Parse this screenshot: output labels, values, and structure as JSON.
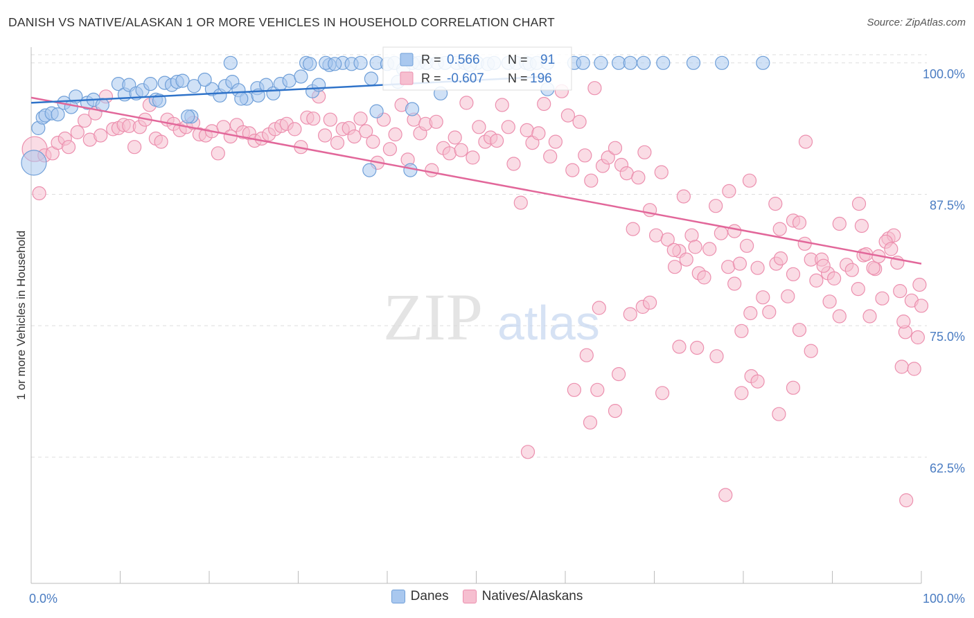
{
  "title": "DANISH VS NATIVE/ALASKAN 1 OR MORE VEHICLES IN HOUSEHOLD CORRELATION CHART",
  "source": "Source: ZipAtlas.com",
  "watermark": {
    "zip": "ZIP",
    "atlas": "atlas"
  },
  "colors": {
    "danes_fill": "#a9c8ef",
    "danes_stroke": "#6f9fd8",
    "danes_line": "#2f73c9",
    "natives_fill": "#f6bfd0",
    "natives_stroke": "#ec8fae",
    "natives_line": "#e2679a",
    "grid": "#dddddd",
    "axis_label": "#4a7cc2"
  },
  "stats_legend": {
    "danes": {
      "r_label": "R =",
      "r_value": "0.566",
      "n_label": "N =",
      "n_value": "91"
    },
    "natives": {
      "r_label": "R =",
      "r_value": "-0.607",
      "n_label": "N =",
      "n_value": "196"
    }
  },
  "chart_data": {
    "type": "scatter",
    "title": "DANISH VS NATIVE/ALASKAN 1 OR MORE VEHICLES IN HOUSEHOLD CORRELATION CHART",
    "xlabel": "",
    "ylabel": "1 or more Vehicles in Household",
    "xlim": [
      0,
      100
    ],
    "ylim": [
      50.5,
      101.5
    ],
    "x_tick_labels": [
      "0.0%",
      "100.0%"
    ],
    "y_ticks": [
      100.0,
      87.5,
      75.0,
      62.5
    ],
    "y_tick_labels": [
      "100.0%",
      "87.5%",
      "75.0%",
      "62.5%"
    ],
    "grid": true,
    "legend_placement": "top-center",
    "series": [
      {
        "name": "Danes",
        "r": 0.566,
        "n": 91,
        "trend": [
          [
            0,
            96.2
          ],
          [
            58,
            98.7
          ]
        ],
        "points": [
          [
            0.3,
            90.5
          ],
          [
            0.8,
            93.8
          ],
          [
            1.3,
            94.8
          ],
          [
            1.6,
            95.0
          ],
          [
            2.3,
            95.2
          ],
          [
            3.0,
            95.1
          ],
          [
            3.7,
            96.2
          ],
          [
            4.5,
            95.8
          ],
          [
            5.0,
            96.8
          ],
          [
            6.3,
            96.2
          ],
          [
            7.0,
            96.5
          ],
          [
            9.8,
            98.0
          ],
          [
            8.0,
            96.0
          ],
          [
            10.5,
            97.0
          ],
          [
            11.0,
            97.9
          ],
          [
            11.8,
            97.1
          ],
          [
            12.5,
            97.4
          ],
          [
            13.4,
            98.0
          ],
          [
            14.0,
            96.5
          ],
          [
            15.0,
            98.1
          ],
          [
            15.8,
            97.9
          ],
          [
            16.4,
            98.2
          ],
          [
            17.0,
            98.3
          ],
          [
            18.0,
            94.9
          ],
          [
            18.3,
            97.8
          ],
          [
            20.3,
            97.5
          ],
          [
            21.2,
            96.9
          ],
          [
            21.8,
            97.8
          ],
          [
            22.6,
            98.2
          ],
          [
            23.3,
            97.4
          ],
          [
            24.2,
            96.6
          ],
          [
            25.4,
            97.6
          ],
          [
            26.4,
            97.9
          ],
          [
            27.2,
            97.1
          ],
          [
            28.0,
            98.0
          ],
          [
            29.0,
            98.3
          ],
          [
            30.3,
            98.7
          ],
          [
            31.6,
            97.3
          ],
          [
            32.3,
            97.9
          ],
          [
            33.5,
            99.8
          ],
          [
            35.0,
            100.0
          ],
          [
            36.0,
            99.9
          ],
          [
            37.0,
            100.0
          ],
          [
            38.2,
            98.5
          ],
          [
            38.8,
            100.0
          ],
          [
            40.0,
            99.9
          ],
          [
            40.8,
            100.0
          ],
          [
            41.8,
            99.4
          ],
          [
            42.8,
            100.0
          ],
          [
            43.5,
            100.0
          ],
          [
            44.4,
            100.0
          ],
          [
            45.6,
            100.0
          ],
          [
            46.5,
            100.0
          ],
          [
            47.8,
            100.0
          ],
          [
            48.7,
            100.0
          ],
          [
            50.1,
            100.0
          ],
          [
            51.3,
            99.9
          ],
          [
            52.0,
            100.0
          ],
          [
            53.6,
            100.0
          ],
          [
            54.5,
            100.0
          ],
          [
            55.6,
            100.0
          ],
          [
            56.0,
            99.9
          ],
          [
            56.8,
            100.0
          ],
          [
            58.0,
            100.0
          ],
          [
            61.0,
            100.0
          ],
          [
            62.0,
            100.0
          ],
          [
            64.0,
            100.0
          ],
          [
            66.0,
            100.0
          ],
          [
            67.3,
            100.0
          ],
          [
            68.8,
            100.0
          ],
          [
            71.0,
            100.0
          ],
          [
            74.4,
            100.0
          ],
          [
            77.6,
            100.0
          ],
          [
            82.2,
            100.0
          ],
          [
            30.9,
            100.0
          ],
          [
            31.3,
            99.9
          ],
          [
            33.1,
            100.0
          ],
          [
            34.1,
            99.9
          ],
          [
            14.4,
            96.4
          ],
          [
            22.4,
            100.0
          ],
          [
            17.6,
            94.9
          ],
          [
            19.5,
            98.4
          ],
          [
            23.6,
            96.6
          ],
          [
            41.2,
            98.2
          ],
          [
            25.5,
            96.9
          ],
          [
            38.8,
            95.4
          ],
          [
            42.8,
            95.6
          ],
          [
            46.0,
            97.1
          ],
          [
            49.3,
            99.8
          ],
          [
            38.0,
            89.8
          ],
          [
            42.6,
            89.8
          ],
          [
            58.0,
            97.5
          ]
        ]
      },
      {
        "name": "Natives/Alaskans",
        "r": -0.607,
        "n": 196,
        "trend": [
          [
            0,
            96.7
          ],
          [
            100,
            80.9
          ]
        ],
        "points": [
          [
            0.4,
            91.8
          ],
          [
            0.9,
            87.6
          ],
          [
            1.5,
            91.2
          ],
          [
            2.4,
            91.4
          ],
          [
            3.0,
            92.4
          ],
          [
            3.8,
            92.8
          ],
          [
            4.2,
            92.0
          ],
          [
            5.2,
            93.4
          ],
          [
            6.0,
            94.5
          ],
          [
            6.6,
            92.7
          ],
          [
            7.2,
            95.2
          ],
          [
            7.8,
            93.1
          ],
          [
            8.4,
            96.8
          ],
          [
            9.2,
            93.7
          ],
          [
            9.8,
            93.8
          ],
          [
            10.4,
            94.1
          ],
          [
            11.0,
            94.0
          ],
          [
            11.6,
            92.0
          ],
          [
            12.2,
            93.9
          ],
          [
            12.8,
            94.6
          ],
          [
            13.3,
            96.0
          ],
          [
            14.0,
            92.8
          ],
          [
            14.6,
            92.5
          ],
          [
            15.3,
            94.6
          ],
          [
            16.0,
            94.2
          ],
          [
            16.7,
            93.6
          ],
          [
            17.4,
            93.9
          ],
          [
            18.2,
            94.3
          ],
          [
            18.9,
            93.2
          ],
          [
            19.6,
            93.1
          ],
          [
            20.3,
            93.5
          ],
          [
            21.0,
            91.4
          ],
          [
            21.6,
            93.9
          ],
          [
            22.4,
            93.0
          ],
          [
            23.1,
            94.1
          ],
          [
            23.8,
            93.4
          ],
          [
            24.5,
            93.3
          ],
          [
            25.1,
            92.6
          ],
          [
            25.9,
            92.8
          ],
          [
            26.7,
            93.2
          ],
          [
            27.4,
            93.7
          ],
          [
            28.1,
            94.0
          ],
          [
            28.7,
            94.2
          ],
          [
            29.6,
            93.7
          ],
          [
            30.3,
            92.0
          ],
          [
            31.0,
            94.8
          ],
          [
            31.7,
            94.7
          ],
          [
            32.3,
            96.8
          ],
          [
            33.0,
            93.1
          ],
          [
            33.6,
            94.6
          ],
          [
            34.4,
            92.4
          ],
          [
            35.0,
            93.7
          ],
          [
            35.7,
            93.8
          ],
          [
            36.3,
            93.0
          ],
          [
            37.0,
            94.7
          ],
          [
            37.6,
            93.5
          ],
          [
            38.4,
            92.5
          ],
          [
            38.9,
            90.5
          ],
          [
            39.6,
            94.6
          ],
          [
            40.3,
            91.8
          ],
          [
            40.9,
            93.2
          ],
          [
            41.6,
            96.0
          ],
          [
            42.3,
            90.8
          ],
          [
            43.0,
            94.6
          ],
          [
            43.7,
            93.3
          ],
          [
            44.3,
            94.2
          ],
          [
            45.0,
            89.8
          ],
          [
            45.5,
            94.4
          ],
          [
            46.3,
            91.9
          ],
          [
            47.0,
            91.4
          ],
          [
            47.6,
            92.9
          ],
          [
            48.3,
            91.7
          ],
          [
            48.9,
            96.2
          ],
          [
            49.6,
            91.0
          ],
          [
            50.3,
            93.9
          ],
          [
            51.0,
            92.5
          ],
          [
            51.6,
            92.9
          ],
          [
            52.3,
            92.6
          ],
          [
            52.9,
            96.0
          ],
          [
            53.6,
            93.9
          ],
          [
            54.2,
            90.4
          ],
          [
            55.0,
            86.7
          ],
          [
            55.7,
            93.6
          ],
          [
            56.3,
            92.4
          ],
          [
            57.0,
            93.3
          ],
          [
            57.6,
            96.1
          ],
          [
            58.3,
            91.1
          ],
          [
            58.9,
            92.5
          ],
          [
            59.6,
            97.3
          ],
          [
            60.3,
            95.0
          ],
          [
            60.8,
            89.8
          ],
          [
            61.6,
            94.4
          ],
          [
            62.2,
            91.2
          ],
          [
            62.9,
            88.8
          ],
          [
            63.3,
            97.6
          ],
          [
            64.2,
            90.2
          ],
          [
            64.8,
            91.0
          ],
          [
            65.6,
            91.9
          ],
          [
            66.3,
            90.3
          ],
          [
            66.9,
            89.5
          ],
          [
            67.6,
            84.2
          ],
          [
            68.2,
            89.1
          ],
          [
            68.9,
            91.5
          ],
          [
            69.5,
            86.0
          ],
          [
            70.2,
            83.6
          ],
          [
            70.8,
            89.6
          ],
          [
            71.5,
            83.2
          ],
          [
            72.3,
            80.6
          ],
          [
            72.8,
            82.1
          ],
          [
            73.6,
            81.3
          ],
          [
            74.2,
            83.6
          ],
          [
            75.0,
            80.0
          ],
          [
            75.6,
            79.6
          ],
          [
            76.2,
            82.3
          ],
          [
            76.9,
            86.4
          ],
          [
            77.5,
            83.8
          ],
          [
            78.3,
            80.6
          ],
          [
            79.0,
            79.0
          ],
          [
            79.8,
            74.5
          ],
          [
            80.4,
            82.6
          ],
          [
            80.8,
            76.2
          ],
          [
            81.6,
            80.5
          ],
          [
            82.2,
            77.7
          ],
          [
            82.9,
            76.3
          ],
          [
            83.7,
            80.9
          ],
          [
            84.2,
            81.4
          ],
          [
            85.0,
            77.8
          ],
          [
            85.6,
            79.9
          ],
          [
            86.3,
            74.6
          ],
          [
            86.9,
            82.8
          ],
          [
            87.6,
            81.3
          ],
          [
            88.2,
            79.3
          ],
          [
            88.8,
            81.3
          ],
          [
            89.5,
            80.0
          ],
          [
            90.2,
            79.5
          ],
          [
            90.8,
            75.9
          ],
          [
            91.6,
            80.8
          ],
          [
            92.2,
            80.3
          ],
          [
            92.9,
            78.5
          ],
          [
            93.5,
            81.7
          ],
          [
            94.2,
            75.9
          ],
          [
            94.8,
            80.4
          ],
          [
            95.6,
            77.6
          ],
          [
            96.3,
            83.3
          ],
          [
            96.9,
            83.6
          ],
          [
            97.6,
            78.3
          ],
          [
            98.2,
            74.4
          ],
          [
            98.9,
            77.4
          ],
          [
            99.6,
            73.9
          ],
          [
            99.8,
            78.9
          ],
          [
            100.0,
            76.9
          ],
          [
            72.2,
            82.2
          ],
          [
            73.3,
            87.3
          ],
          [
            74.6,
            82.5
          ],
          [
            78.4,
            87.8
          ],
          [
            79.0,
            84.0
          ],
          [
            80.7,
            88.8
          ],
          [
            83.6,
            86.6
          ],
          [
            84.1,
            84.2
          ],
          [
            85.6,
            85.0
          ],
          [
            86.3,
            84.8
          ],
          [
            87.0,
            92.5
          ],
          [
            89.0,
            80.7
          ],
          [
            90.8,
            84.7
          ],
          [
            93.0,
            86.6
          ],
          [
            93.8,
            81.8
          ],
          [
            94.6,
            80.5
          ],
          [
            95.2,
            81.6
          ],
          [
            96.0,
            83.0
          ],
          [
            98.0,
            75.4
          ],
          [
            97.3,
            81.0
          ],
          [
            55.8,
            63.0
          ],
          [
            62.4,
            72.2
          ],
          [
            63.6,
            68.9
          ],
          [
            65.6,
            66.9
          ],
          [
            68.7,
            76.8
          ],
          [
            70.9,
            68.6
          ],
          [
            72.8,
            73.0
          ],
          [
            74.8,
            72.9
          ],
          [
            77.0,
            72.1
          ],
          [
            79.8,
            68.6
          ],
          [
            80.9,
            70.2
          ],
          [
            81.6,
            69.7
          ],
          [
            84.0,
            66.6
          ],
          [
            85.6,
            69.1
          ],
          [
            87.6,
            72.6
          ],
          [
            89.7,
            77.3
          ],
          [
            93.3,
            84.5
          ],
          [
            96.6,
            82.3
          ],
          [
            97.8,
            71.1
          ],
          [
            99.2,
            70.9
          ],
          [
            61.0,
            68.9
          ],
          [
            63.8,
            76.7
          ],
          [
            67.3,
            76.1
          ],
          [
            69.5,
            77.2
          ],
          [
            66.0,
            70.4
          ],
          [
            78.0,
            58.9
          ],
          [
            98.3,
            58.4
          ],
          [
            62.8,
            65.8
          ],
          [
            79.6,
            80.9
          ]
        ]
      }
    ]
  }
}
